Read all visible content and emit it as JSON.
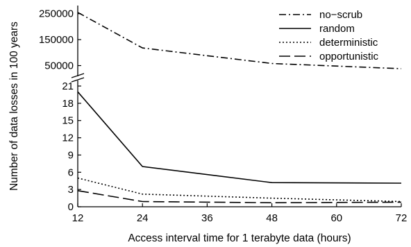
{
  "chart_data": {
    "type": "line",
    "title": "",
    "xlabel": "Access interval time for 1 terabyte data (hours)",
    "ylabel": "Number of data losses in 100 years",
    "x": [
      12,
      24,
      48,
      72
    ],
    "xticks": [
      "12",
      "24",
      "36",
      "48",
      "60",
      "72"
    ],
    "xlim": [
      12,
      72
    ],
    "y_axis_broken": true,
    "upper_segment": {
      "ylim": [
        30000,
        260000
      ],
      "yticks": [
        "250000",
        "150000",
        "50000"
      ]
    },
    "lower_segment": {
      "ylim": [
        0,
        21
      ],
      "yticks": [
        "21",
        "18",
        "15",
        "12",
        "9",
        "6",
        "3",
        "0"
      ]
    },
    "grid": false,
    "legend_position": "top-right",
    "series": [
      {
        "name": "no−scrub",
        "line_style": "dash-dot",
        "segment": "upper",
        "values": [
          255000,
          118000,
          58000,
          38000
        ]
      },
      {
        "name": "random",
        "line_style": "solid",
        "segment": "lower",
        "values": [
          20.0,
          7.0,
          4.2,
          4.1
        ]
      },
      {
        "name": "deterministic",
        "line_style": "dotted",
        "segment": "lower",
        "values": [
          5.0,
          2.2,
          1.5,
          0.9
        ]
      },
      {
        "name": "opportunistic",
        "line_style": "long-dash",
        "segment": "lower",
        "values": [
          2.8,
          0.9,
          0.7,
          0.8
        ]
      }
    ]
  }
}
